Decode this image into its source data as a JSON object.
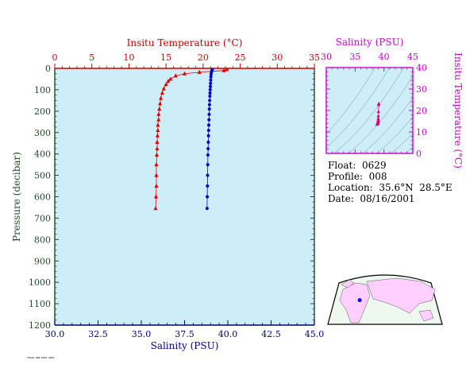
{
  "chart_data": [
    {
      "type": "scatter",
      "name": "profile",
      "xlabel_bottom": "Salinity (PSU)",
      "xlabel_top": "Insitu Temperature (°C)",
      "ylabel": "Pressure (decibar)",
      "salinity_axis": {
        "range": [
          30,
          45
        ],
        "ticks": [
          "30.0",
          "32.5",
          "35.0",
          "37.5",
          "40.0",
          "42.5",
          "45.0"
        ]
      },
      "temperature_axis": {
        "range": [
          0,
          35
        ],
        "ticks": [
          "0",
          "5",
          "10",
          "15",
          "20",
          "25",
          "30",
          "35"
        ]
      },
      "pressure_axis": {
        "range": [
          0,
          1200
        ],
        "reversed": true,
        "ticks": [
          "0",
          "100",
          "200",
          "300",
          "400",
          "500",
          "600",
          "700",
          "800",
          "900",
          "1000",
          "1100",
          "1200"
        ]
      },
      "temperature_series": {
        "color": "#dd0000",
        "marker": "triangle",
        "points": [
          {
            "t": 23.2,
            "p": 5
          },
          {
            "t": 22.8,
            "p": 10
          },
          {
            "t": 19.5,
            "p": 18
          },
          {
            "t": 17.5,
            "p": 25
          },
          {
            "t": 16.3,
            "p": 35
          },
          {
            "t": 15.6,
            "p": 50
          },
          {
            "t": 15.3,
            "p": 60
          },
          {
            "t": 15.0,
            "p": 75
          },
          {
            "t": 14.7,
            "p": 95
          },
          {
            "t": 14.5,
            "p": 115
          },
          {
            "t": 14.3,
            "p": 140
          },
          {
            "t": 14.2,
            "p": 165
          },
          {
            "t": 14.1,
            "p": 190
          },
          {
            "t": 14.0,
            "p": 215
          },
          {
            "t": 14.0,
            "p": 240
          },
          {
            "t": 13.9,
            "p": 265
          },
          {
            "t": 13.9,
            "p": 290
          },
          {
            "t": 13.85,
            "p": 315
          },
          {
            "t": 13.8,
            "p": 345
          },
          {
            "t": 13.8,
            "p": 375
          },
          {
            "t": 13.75,
            "p": 405
          },
          {
            "t": 13.7,
            "p": 450
          },
          {
            "t": 13.7,
            "p": 500
          },
          {
            "t": 13.7,
            "p": 550
          },
          {
            "t": 13.65,
            "p": 600
          },
          {
            "t": 13.6,
            "p": 655
          }
        ]
      },
      "salinity_series": {
        "color": "#0000cc",
        "marker": "circle",
        "points": [
          {
            "s": 39.1,
            "p": 5
          },
          {
            "s": 39.08,
            "p": 10
          },
          {
            "s": 39.05,
            "p": 18
          },
          {
            "s": 39.03,
            "p": 28
          },
          {
            "s": 39.02,
            "p": 40
          },
          {
            "s": 39.01,
            "p": 55
          },
          {
            "s": 39.0,
            "p": 70
          },
          {
            "s": 38.99,
            "p": 85
          },
          {
            "s": 38.98,
            "p": 100
          },
          {
            "s": 38.97,
            "p": 115
          },
          {
            "s": 38.96,
            "p": 130
          },
          {
            "s": 38.95,
            "p": 150
          },
          {
            "s": 38.94,
            "p": 170
          },
          {
            "s": 38.93,
            "p": 190
          },
          {
            "s": 38.92,
            "p": 215
          },
          {
            "s": 38.91,
            "p": 240
          },
          {
            "s": 38.9,
            "p": 265
          },
          {
            "s": 38.89,
            "p": 290
          },
          {
            "s": 38.88,
            "p": 315
          },
          {
            "s": 38.87,
            "p": 345
          },
          {
            "s": 38.86,
            "p": 375
          },
          {
            "s": 38.85,
            "p": 405
          },
          {
            "s": 38.84,
            "p": 450
          },
          {
            "s": 38.83,
            "p": 500
          },
          {
            "s": 38.82,
            "p": 550
          },
          {
            "s": 38.81,
            "p": 600
          },
          {
            "s": 38.8,
            "p": 655
          }
        ]
      }
    },
    {
      "type": "scatter",
      "name": "ts-diagram",
      "xlabel": "Salinity (PSU)",
      "ylabel": "Insitu Temperature (°C)",
      "x_axis": {
        "range": [
          30,
          45
        ],
        "ticks": [
          "30",
          "35",
          "40",
          "45"
        ]
      },
      "y_axis": {
        "range": [
          0,
          40
        ],
        "ticks": [
          "0",
          "10",
          "20",
          "30",
          "40"
        ]
      },
      "color": "#dd0088",
      "points": [
        {
          "s": 39.1,
          "t": 23.2
        },
        {
          "s": 39.08,
          "t": 22.8
        },
        {
          "s": 39.05,
          "t": 19.5
        },
        {
          "s": 39.03,
          "t": 17.5
        },
        {
          "s": 39.02,
          "t": 16.3
        },
        {
          "s": 39.01,
          "t": 15.6
        },
        {
          "s": 39.0,
          "t": 15.3
        },
        {
          "s": 38.99,
          "t": 15.0
        },
        {
          "s": 38.98,
          "t": 14.7
        },
        {
          "s": 38.97,
          "t": 14.5
        },
        {
          "s": 38.95,
          "t": 14.3
        },
        {
          "s": 38.93,
          "t": 14.1
        },
        {
          "s": 38.9,
          "t": 14.0
        },
        {
          "s": 38.88,
          "t": 13.9
        },
        {
          "s": 38.85,
          "t": 13.8
        },
        {
          "s": 38.82,
          "t": 13.7
        },
        {
          "s": 38.8,
          "t": 13.6
        }
      ]
    }
  ],
  "float_info": {
    "float": "Float:  0629",
    "profile": "Profile:  008",
    "location": "Location:  35.6°N  28.5°E",
    "date": "Date:  08/16/2001"
  },
  "map": {
    "marker_lat": 35.6,
    "marker_lon": 28.5
  },
  "stamp": "F0629-008-0816-2001"
}
